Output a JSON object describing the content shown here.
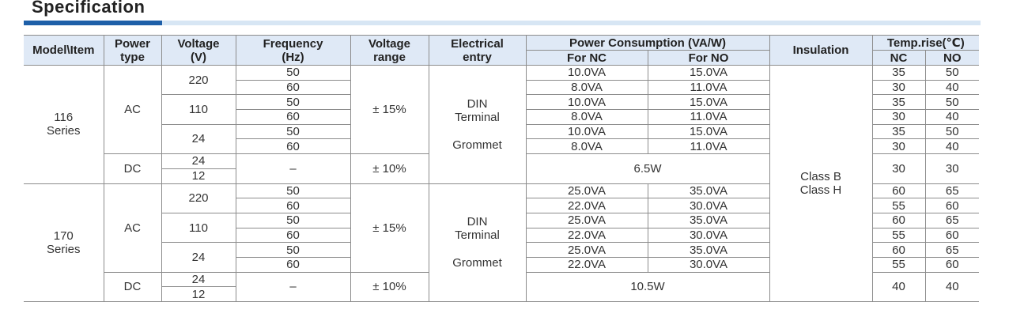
{
  "title": "Specification",
  "header": {
    "model": "Model\\Item",
    "power_type": [
      "Power",
      "type"
    ],
    "voltage": [
      "Voltage",
      "(V)"
    ],
    "frequency": [
      "Frequency",
      "(Hz)"
    ],
    "range": [
      "Voltage",
      "range"
    ],
    "entry": [
      "Electrical",
      "entry"
    ],
    "power": "Power Consumption (VA/W)",
    "for_nc": "For NC",
    "for_no": "For NO",
    "insulation": "Insulation",
    "temp": "Temp.rise(℃)",
    "nc": "NC",
    "no": "NO"
  },
  "insulation": [
    "Class B",
    "Class H"
  ],
  "series": [
    {
      "model": [
        "116",
        "Series"
      ],
      "entry": [
        "DIN",
        "Terminal",
        "Grommet"
      ],
      "ac": {
        "type": "AC",
        "range": "± 15%",
        "groups": [
          {
            "voltage": "220",
            "rows": [
              {
                "freq": "50",
                "nc": "10.0VA",
                "no": "15.0VA",
                "tnc": 35,
                "tno": 50
              },
              {
                "freq": "60",
                "nc": "8.0VA",
                "no": "11.0VA",
                "tnc": 30,
                "tno": 40
              }
            ]
          },
          {
            "voltage": "110",
            "rows": [
              {
                "freq": "50",
                "nc": "10.0VA",
                "no": "15.0VA",
                "tnc": 35,
                "tno": 50
              },
              {
                "freq": "60",
                "nc": "8.0VA",
                "no": "11.0VA",
                "tnc": 30,
                "tno": 40
              }
            ]
          },
          {
            "voltage": "24",
            "rows": [
              {
                "freq": "50",
                "nc": "10.0VA",
                "no": "15.0VA",
                "tnc": 35,
                "tno": 50
              },
              {
                "freq": "60",
                "nc": "8.0VA",
                "no": "11.0VA",
                "tnc": 30,
                "tno": 40
              }
            ]
          }
        ]
      },
      "dc": {
        "type": "DC",
        "voltages": [
          "24",
          "12"
        ],
        "freq": "–",
        "range": "± 10%",
        "power": "6.5W",
        "tnc": 30,
        "tno": 30
      }
    },
    {
      "model": [
        "170",
        "Series"
      ],
      "entry": [
        "DIN",
        "Terminal",
        "Grommet"
      ],
      "ac": {
        "type": "AC",
        "range": "± 15%",
        "groups": [
          {
            "voltage": "220",
            "rows": [
              {
                "freq": "50",
                "nc": "25.0VA",
                "no": "35.0VA",
                "tnc": 60,
                "tno": 65
              },
              {
                "freq": "60",
                "nc": "22.0VA",
                "no": "30.0VA",
                "tnc": 55,
                "tno": 60
              }
            ]
          },
          {
            "voltage": "110",
            "rows": [
              {
                "freq": "50",
                "nc": "25.0VA",
                "no": "35.0VA",
                "tnc": 60,
                "tno": 65
              },
              {
                "freq": "60",
                "nc": "22.0VA",
                "no": "30.0VA",
                "tnc": 55,
                "tno": 60
              }
            ]
          },
          {
            "voltage": "24",
            "rows": [
              {
                "freq": "50",
                "nc": "25.0VA",
                "no": "35.0VA",
                "tnc": 60,
                "tno": 65
              },
              {
                "freq": "60",
                "nc": "22.0VA",
                "no": "30.0VA",
                "tnc": 55,
                "tno": 60
              }
            ]
          }
        ]
      },
      "dc": {
        "type": "DC",
        "voltages": [
          "24",
          "12"
        ],
        "freq": "–",
        "range": "± 10%",
        "power": "10.5W",
        "tnc": 40,
        "tno": 40
      }
    }
  ]
}
